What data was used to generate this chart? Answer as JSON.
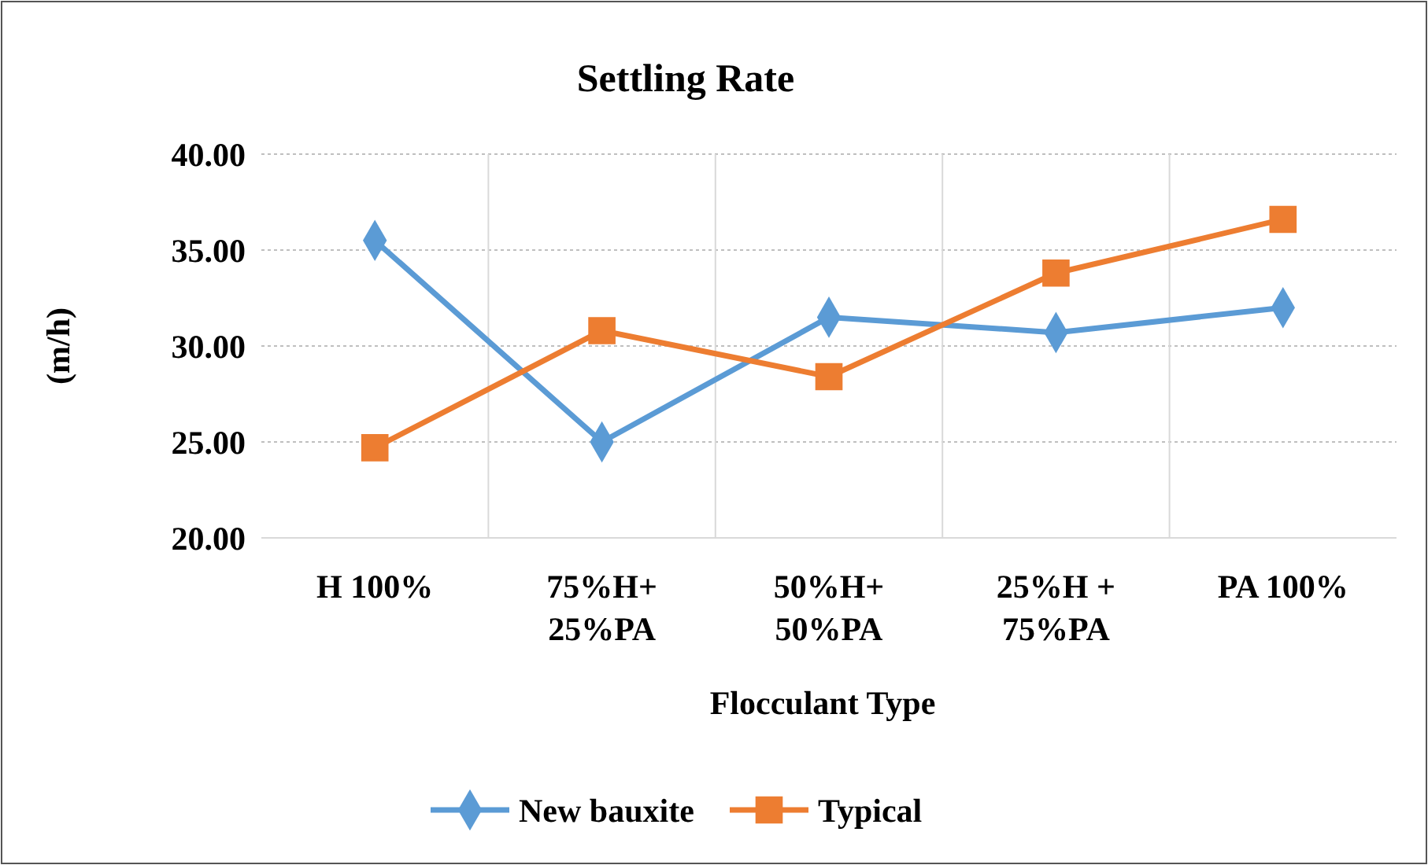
{
  "chart_data": {
    "type": "line",
    "title": "Settling Rate",
    "xlabel": "Flocculant Type",
    "ylabel": "(m/h)",
    "categories": [
      "H 100%",
      "75%H+\n25%PA",
      "50%H+\n50%PA",
      "25%H +\n75%PA",
      "PA 100%"
    ],
    "series": [
      {
        "name": "New bauxite",
        "color": "#5b9bd5",
        "marker": "diamond",
        "values": [
          35.5,
          25.0,
          31.5,
          30.7,
          32.0
        ]
      },
      {
        "name": "Typical",
        "color": "#ed7d31",
        "marker": "square",
        "values": [
          24.7,
          30.8,
          28.4,
          33.8,
          36.6
        ]
      }
    ],
    "ylim": [
      20,
      40
    ],
    "yticks": [
      {
        "value": 20,
        "label": "20.00"
      },
      {
        "value": 25,
        "label": "25.00"
      },
      {
        "value": 30,
        "label": "30.00"
      },
      {
        "value": 35,
        "label": "35.00"
      },
      {
        "value": 40,
        "label": "40.00"
      }
    ],
    "grid": true,
    "legend": "bottom"
  }
}
